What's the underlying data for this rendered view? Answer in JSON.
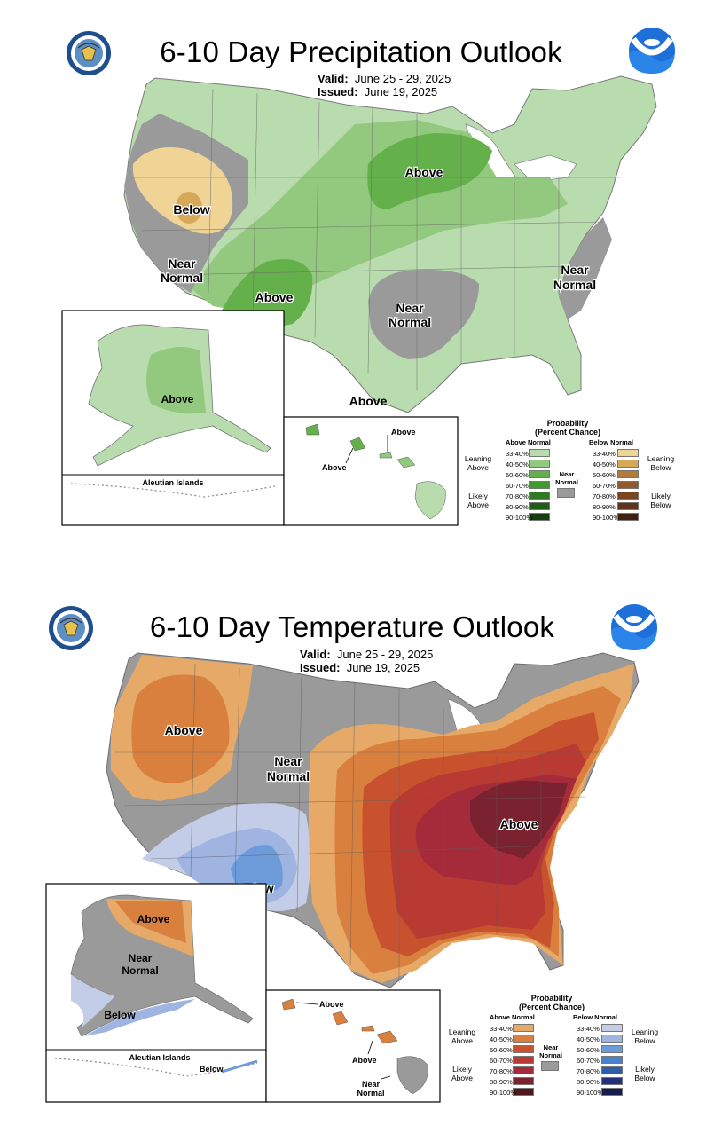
{
  "precip": {
    "title": "6-10 Day Precipitation Outlook",
    "valid_label": "Valid:",
    "valid_value": "June 25 - 29, 2025",
    "issued_label": "Issued:",
    "issued_value": "June 19, 2025",
    "labels": {
      "above_midwest": "Above",
      "below_west": "Below",
      "near_west_1": "Near",
      "near_west_2": "Normal",
      "above_sw": "Above",
      "near_south_1": "Near",
      "near_south_2": "Normal",
      "near_east_1": "Near",
      "near_east_2": "Normal",
      "above_gulf": "Above",
      "above_ak": "Above",
      "aleutian": "Aleutian Islands",
      "hi_above_1": "Above",
      "hi_above_2": "Above"
    },
    "legend": {
      "head1": "Probability",
      "head2": "(Percent Chance)",
      "left_head": "Above Normal",
      "right_head": "Below Normal",
      "leaning_left_1": "Leaning",
      "leaning_left_2": "Above",
      "likely_left_1": "Likely",
      "likely_left_2": "Above",
      "leaning_right_1": "Leaning",
      "leaning_right_2": "Below",
      "likely_right_1": "Likely",
      "likely_right_2": "Below",
      "near_1": "Near",
      "near_2": "Normal",
      "ranges": [
        "33-40%",
        "40-50%",
        "50-60%",
        "60-70%",
        "70-80%",
        "80-90%",
        "90-100%"
      ],
      "left_colors": [
        "#b8dcae",
        "#93c97e",
        "#64b04a",
        "#3f9a2f",
        "#2c7a22",
        "#1f5c18",
        "#153d10"
      ],
      "right_colors": [
        "#f0d495",
        "#d6a95a",
        "#b37a3c",
        "#925a2c",
        "#7a4622",
        "#5e341a",
        "#421f10"
      ],
      "near_color": "#9a9a9a"
    }
  },
  "temp": {
    "title": "6-10 Day Temperature Outlook",
    "valid_label": "Valid:",
    "valid_value": "June 25 - 29, 2025",
    "issued_label": "Issued:",
    "issued_value": "June 19, 2025",
    "labels": {
      "above_nw": "Above",
      "near_c_1": "Near",
      "near_c_2": "Normal",
      "above_e": "Above",
      "below_sw": "Below",
      "above_ak": "Above",
      "near_ak_1": "Near",
      "near_ak_2": "Normal",
      "below_ak": "Below",
      "aleutian": "Aleutian Islands",
      "below_aleut": "Below",
      "hi_above_1": "Above",
      "hi_above_2": "Above",
      "hi_near_1": "Near",
      "hi_near_2": "Normal"
    },
    "legend": {
      "head1": "Probability",
      "head2": "(Percent Chance)",
      "left_head": "Above Normal",
      "right_head": "Below Normal",
      "leaning_left_1": "Leaning",
      "leaning_left_2": "Above",
      "likely_left_1": "Likely",
      "likely_left_2": "Above",
      "leaning_right_1": "Leaning",
      "leaning_right_2": "Below",
      "likely_right_1": "Likely",
      "likely_right_2": "Below",
      "near_1": "Near",
      "near_2": "Normal",
      "ranges": [
        "33-40%",
        "40-50%",
        "50-60%",
        "60-70%",
        "70-80%",
        "80-90%",
        "90-100%"
      ],
      "left_colors": [
        "#e6a968",
        "#d9803f",
        "#c9522e",
        "#b83a32",
        "#a52b3a",
        "#7a2230",
        "#4f1a1e"
      ],
      "right_colors": [
        "#c4cde8",
        "#9fb4e0",
        "#6d9ad8",
        "#4a80cc",
        "#2f5ea8",
        "#23307a",
        "#151d4f"
      ],
      "near_color": "#9a9a9a"
    }
  }
}
